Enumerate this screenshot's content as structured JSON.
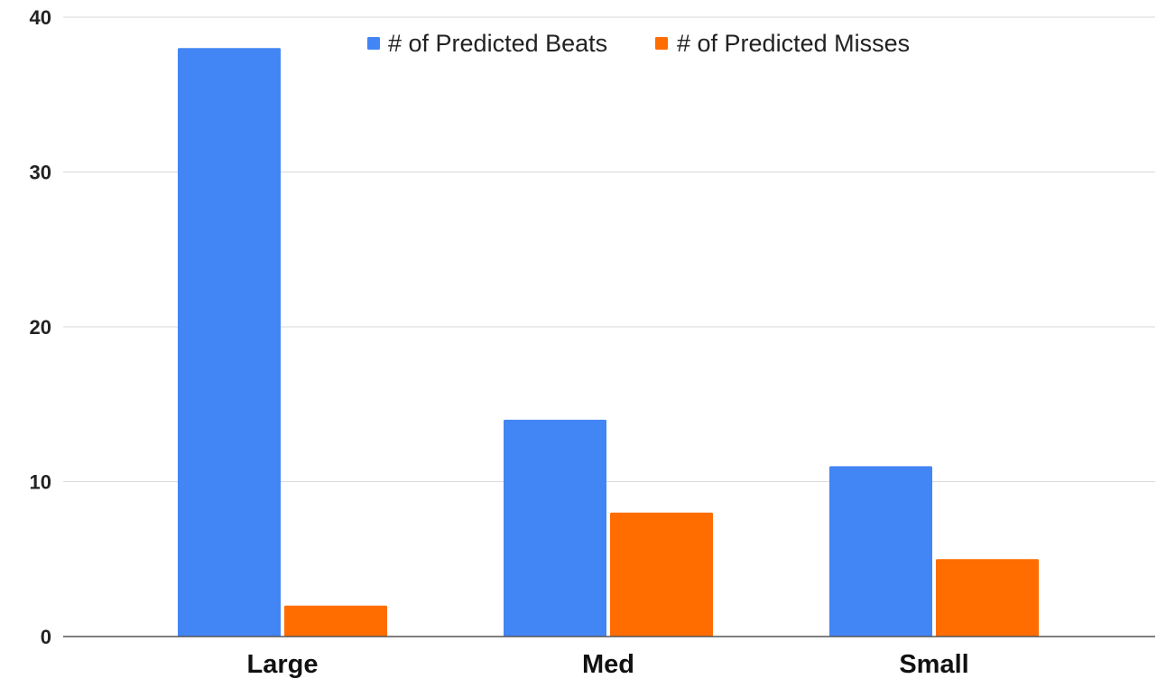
{
  "chart_data": {
    "type": "bar",
    "title": "",
    "xlabel": "",
    "ylabel": "",
    "categories": [
      "Large",
      "Med",
      "Small"
    ],
    "series": [
      {
        "name": "# of Predicted Beats",
        "color": "#4285f4",
        "values": [
          38,
          14,
          11
        ]
      },
      {
        "name": "# of Predicted Misses",
        "color": "#ff6d01",
        "values": [
          2,
          8,
          5
        ]
      }
    ],
    "ylim": [
      0,
      40
    ],
    "yticks": [
      0,
      10,
      20,
      30,
      40
    ],
    "grid": true,
    "legend_position": "top-center"
  },
  "colors": {
    "gridline": "#d9d9d9",
    "axis": "#555555"
  }
}
